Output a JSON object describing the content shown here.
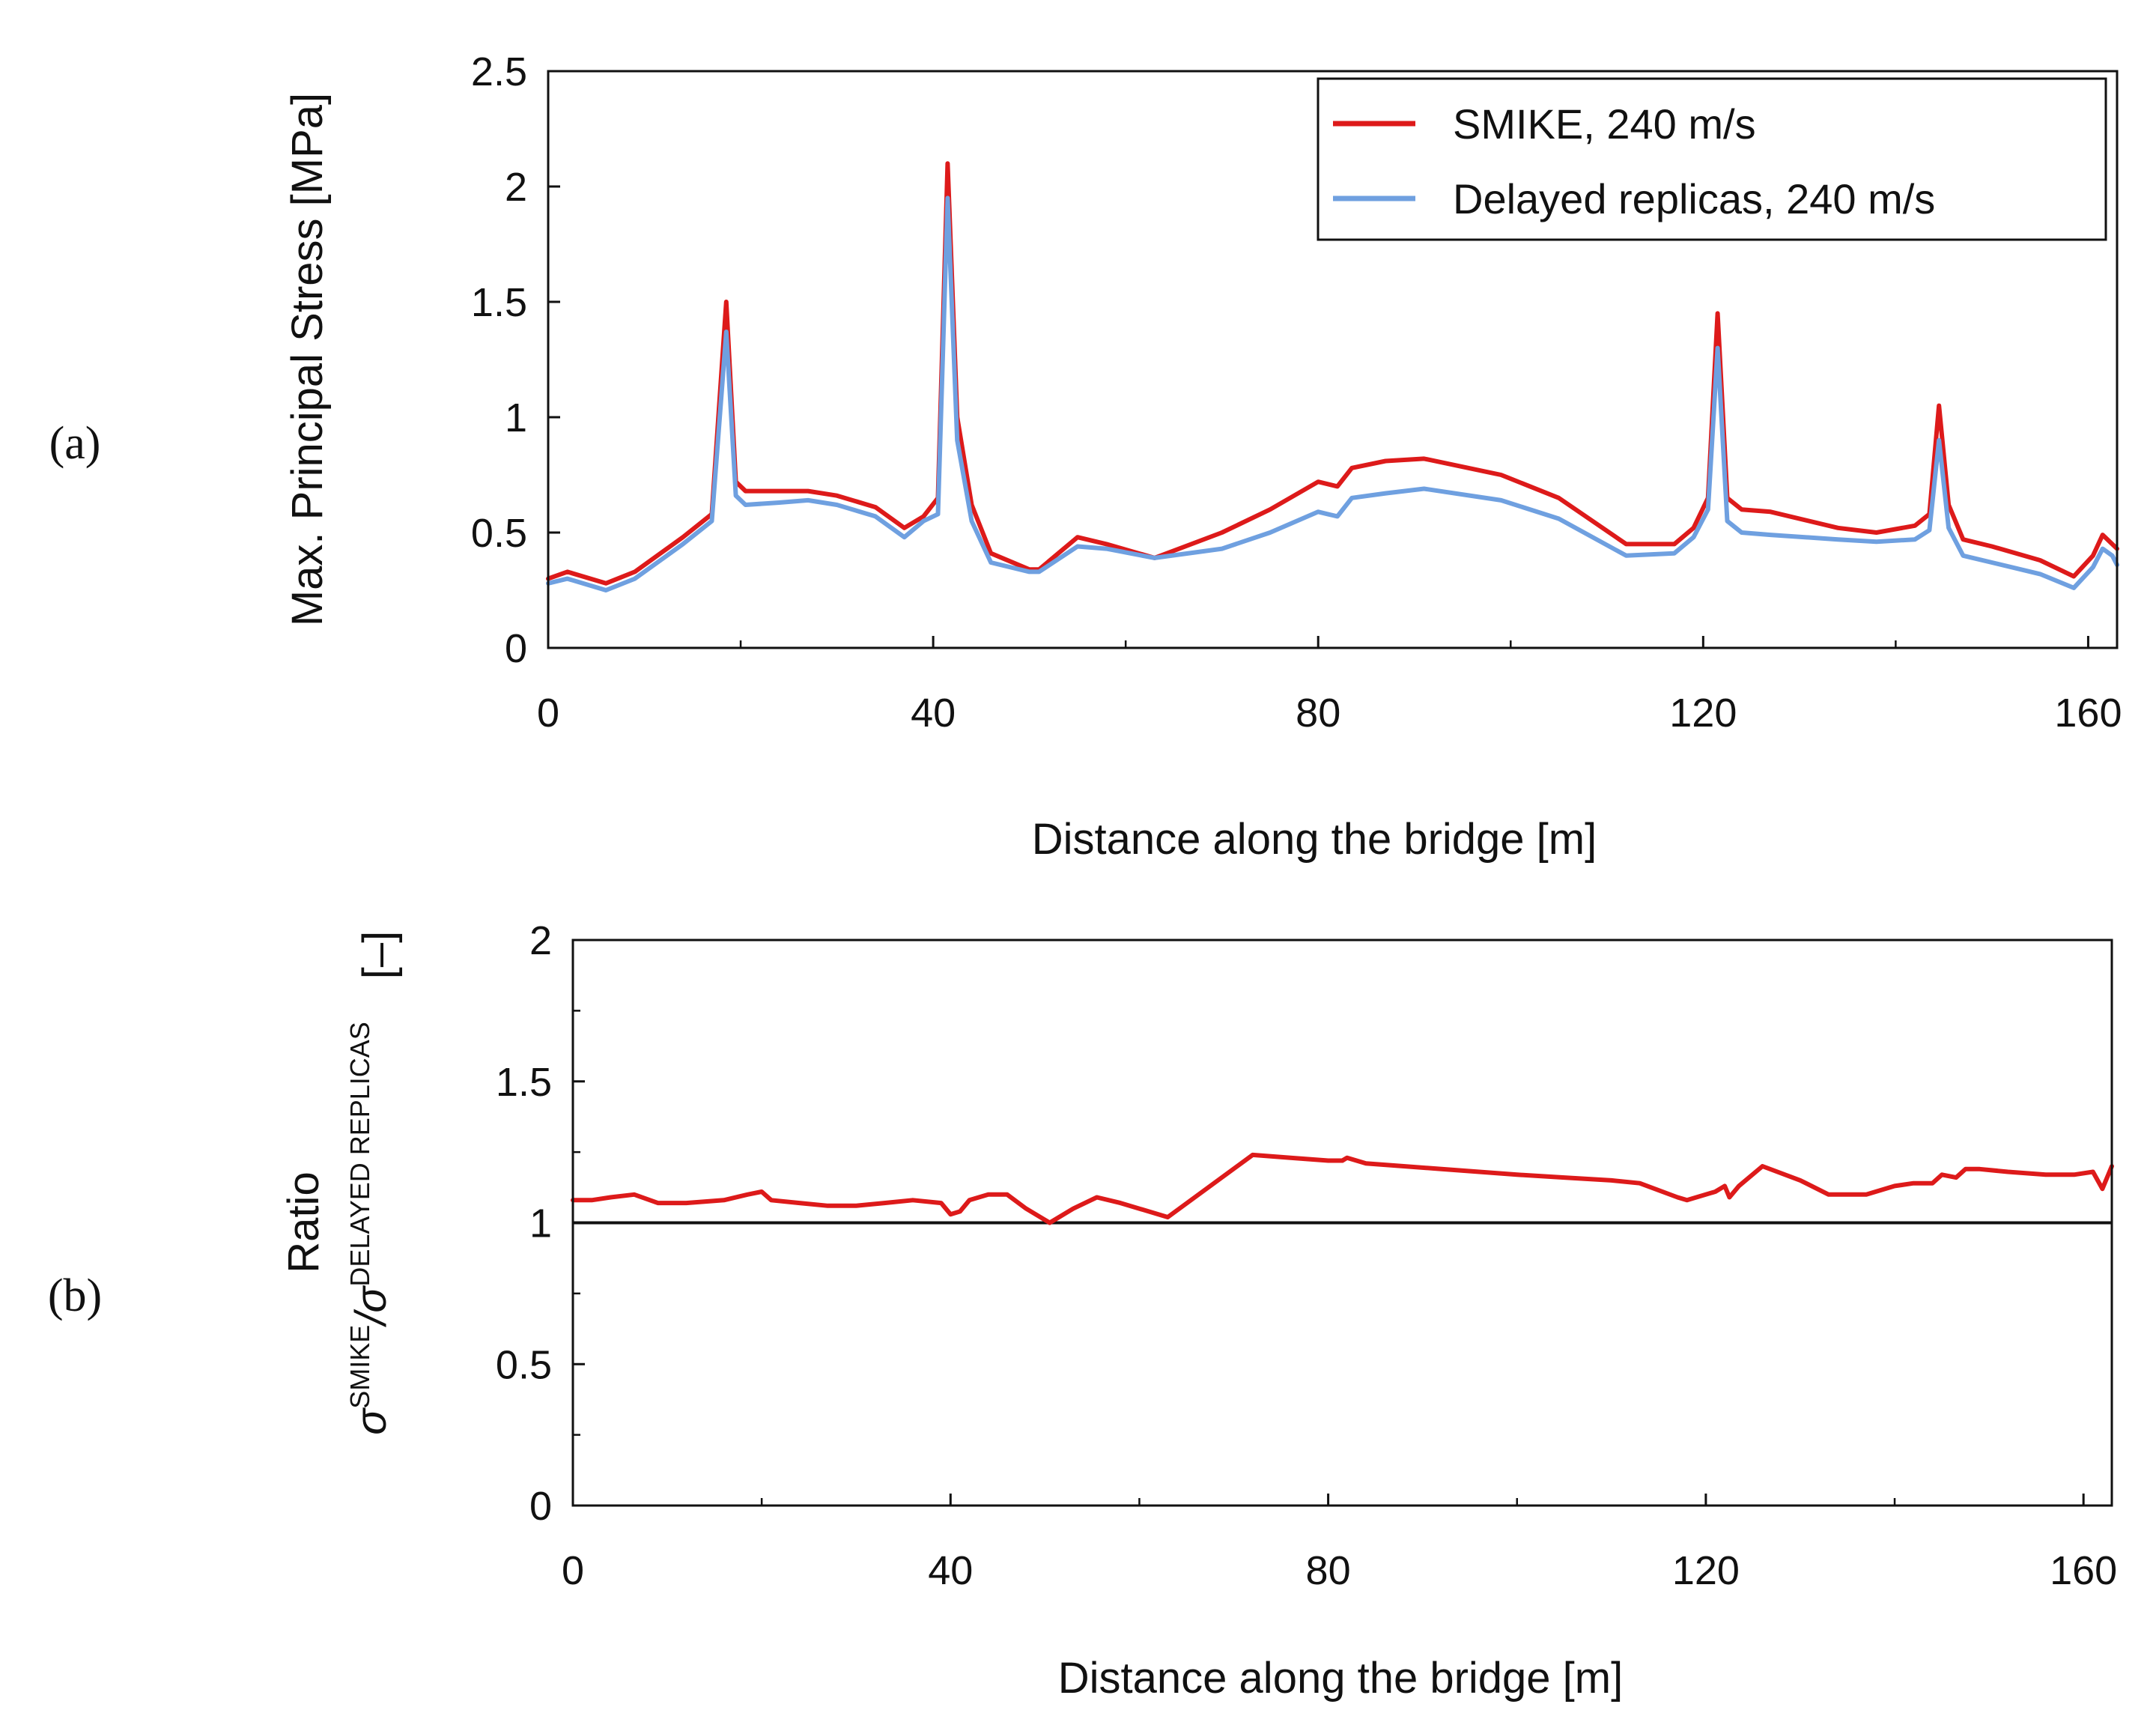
{
  "panels": [
    {
      "id": "a",
      "panel_label": "(a)",
      "legend": [
        {
          "label": "SMIKE, 240 m/s",
          "color": "#dd1a1a"
        },
        {
          "label": "Delayed replicas, 240 m/s",
          "color": "#6fa0e0"
        }
      ]
    },
    {
      "id": "b",
      "panel_label": "(b)",
      "ylabel_line1": "Ratio",
      "ylabel_sigma": "σ",
      "ylabel_sup1": "SMIKE",
      "ylabel_slash": "/σ",
      "ylabel_sup2": "DELAYED REPLICAS",
      "ylabel_unit": "[–]"
    }
  ],
  "chart_data": [
    {
      "type": "line",
      "xlabel": "Distance along the bridge [m]",
      "ylabel": "Max. Principal Stress [MPa]",
      "xlim": [
        0,
        163
      ],
      "ylim": [
        0,
        2.5
      ],
      "xticks": [
        0,
        40,
        80,
        120,
        160
      ],
      "yticks": [
        0,
        0.5,
        1,
        1.5,
        2,
        2.5
      ],
      "ytick_labels": [
        "0",
        "0.5",
        "1",
        "1.5",
        "2",
        "2.5"
      ],
      "legend_position": "top-right",
      "grid": false,
      "series": [
        {
          "name": "SMIKE, 240 m/s",
          "color": "#dd1a1a",
          "x": [
            0,
            2,
            6,
            9,
            14,
            17,
            18.5,
            19.5,
            20.5,
            24,
            27,
            30,
            34,
            37,
            39,
            40.5,
            41.5,
            42.5,
            44,
            46,
            50,
            51,
            55,
            58,
            63,
            70,
            75,
            80,
            81,
            82,
            83.5,
            87,
            91,
            99,
            105,
            112,
            117,
            119,
            120.5,
            121.5,
            122.5,
            124,
            127,
            134,
            138,
            142,
            143.5,
            144.5,
            145.5,
            147,
            150,
            155,
            158.5,
            160.5,
            161.5,
            162.5,
            163
          ],
          "y": [
            0.3,
            0.33,
            0.28,
            0.33,
            0.48,
            0.58,
            1.5,
            0.72,
            0.68,
            0.68,
            0.68,
            0.66,
            0.61,
            0.52,
            0.57,
            0.65,
            2.1,
            1.0,
            0.62,
            0.41,
            0.34,
            0.34,
            0.48,
            0.45,
            0.39,
            0.5,
            0.6,
            0.72,
            0.71,
            0.7,
            0.78,
            0.81,
            0.82,
            0.75,
            0.65,
            0.45,
            0.45,
            0.52,
            0.65,
            1.45,
            0.65,
            0.6,
            0.59,
            0.52,
            0.5,
            0.53,
            0.58,
            1.05,
            0.62,
            0.47,
            0.44,
            0.38,
            0.31,
            0.4,
            0.49,
            0.45,
            0.43
          ]
        },
        {
          "name": "Delayed replicas, 240 m/s",
          "color": "#6fa0e0",
          "x": [
            0,
            2,
            6,
            9,
            14,
            17,
            18.5,
            19.5,
            20.5,
            24,
            27,
            30,
            34,
            37,
            39,
            40.5,
            41.5,
            42.5,
            44,
            46,
            50,
            51,
            55,
            58,
            63,
            70,
            75,
            80,
            81,
            82,
            83.5,
            87,
            91,
            99,
            105,
            112,
            117,
            119,
            120.5,
            121.5,
            122.5,
            124,
            127,
            134,
            138,
            142,
            143.5,
            144.5,
            145.5,
            147,
            150,
            155,
            158.5,
            160.5,
            161.5,
            162.5,
            163
          ],
          "y": [
            0.28,
            0.3,
            0.25,
            0.3,
            0.45,
            0.55,
            1.37,
            0.66,
            0.62,
            0.63,
            0.64,
            0.62,
            0.57,
            0.48,
            0.55,
            0.58,
            1.95,
            0.9,
            0.55,
            0.37,
            0.33,
            0.33,
            0.44,
            0.43,
            0.39,
            0.43,
            0.5,
            0.59,
            0.58,
            0.57,
            0.65,
            0.67,
            0.69,
            0.64,
            0.56,
            0.4,
            0.41,
            0.48,
            0.6,
            1.3,
            0.55,
            0.5,
            0.49,
            0.47,
            0.46,
            0.47,
            0.51,
            0.9,
            0.52,
            0.4,
            0.37,
            0.32,
            0.26,
            0.35,
            0.43,
            0.4,
            0.36
          ]
        }
      ]
    },
    {
      "type": "line",
      "xlabel": "Distance along the bridge [m]",
      "ylabel": "Ratio σSMIKE/σDELAYED REPLICAS [–]",
      "xlim": [
        0,
        163
      ],
      "ylim": [
        0,
        2
      ],
      "xticks": [
        0,
        40,
        80,
        120,
        160
      ],
      "yticks": [
        0,
        0.5,
        1,
        1.5,
        2
      ],
      "ytick_labels": [
        "0",
        "0.5",
        "1",
        "1.5",
        "2"
      ],
      "reference_line": 1,
      "grid": false,
      "series": [
        {
          "color": "#dd1a1a",
          "x": [
            0,
            2,
            4,
            6.5,
            9,
            12,
            16,
            18.5,
            20,
            21,
            24,
            27,
            30,
            33,
            36,
            39,
            40,
            41,
            42,
            44,
            46,
            48,
            50.5,
            53,
            55.5,
            58,
            63,
            72,
            76,
            80,
            81.5,
            82,
            84,
            88,
            92,
            96,
            100,
            105,
            110,
            113,
            117,
            118,
            121,
            122,
            122.5,
            123.5,
            126,
            130,
            133,
            137,
            140,
            142,
            144,
            145,
            146.5,
            147.5,
            149,
            152,
            156,
            159,
            161,
            162,
            163
          ],
          "y": [
            1.08,
            1.08,
            1.09,
            1.1,
            1.07,
            1.07,
            1.08,
            1.1,
            1.11,
            1.08,
            1.07,
            1.06,
            1.06,
            1.07,
            1.08,
            1.07,
            1.03,
            1.04,
            1.08,
            1.1,
            1.1,
            1.05,
            1.0,
            1.05,
            1.09,
            1.07,
            1.02,
            1.24,
            1.23,
            1.22,
            1.22,
            1.23,
            1.21,
            1.2,
            1.19,
            1.18,
            1.17,
            1.16,
            1.15,
            1.14,
            1.09,
            1.08,
            1.11,
            1.13,
            1.09,
            1.13,
            1.2,
            1.15,
            1.1,
            1.1,
            1.13,
            1.14,
            1.14,
            1.17,
            1.16,
            1.19,
            1.19,
            1.18,
            1.17,
            1.17,
            1.18,
            1.12,
            1.2
          ]
        }
      ]
    }
  ]
}
